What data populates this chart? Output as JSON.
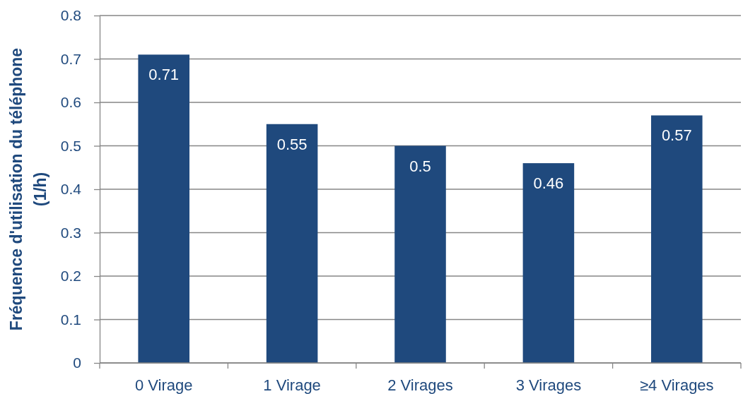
{
  "chart_data": {
    "type": "bar",
    "ylabel": "Fréquence d'utilisation du téléphone\n(1/h)",
    "categories": [
      "0 Virage",
      "1 Virage",
      "2 Virages",
      "3 Virages",
      "≥4 Virages"
    ],
    "values": [
      0.71,
      0.55,
      0.5,
      0.46,
      0.57
    ],
    "color": "#1f497d",
    "ylim": [
      0,
      0.8
    ],
    "yticks": [
      0,
      0.1,
      0.2,
      0.3,
      0.4,
      0.5,
      0.6,
      0.7,
      0.8
    ],
    "grid": "y",
    "data_labels": true
  }
}
